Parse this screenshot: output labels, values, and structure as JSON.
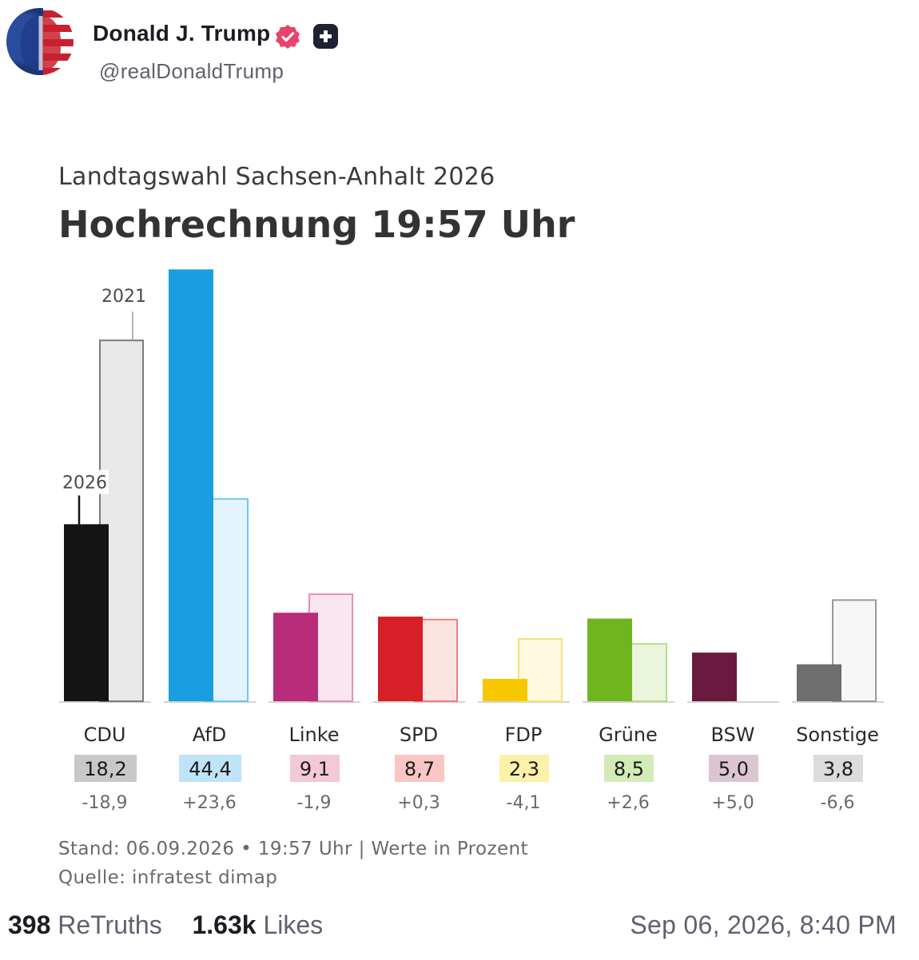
{
  "post": {
    "display_name": "Donald J. Trump",
    "handle": "@realDonaldTrump",
    "retruths_count": "398",
    "retruths_label": "ReTruths",
    "likes_count": "1.63k",
    "likes_label": "Likes",
    "timestamp": "Sep 06, 2026, 8:40 PM",
    "verified_icon": "verified-badge-icon",
    "plus_icon": "plus-badge-icon"
  },
  "chart_data": {
    "type": "bar",
    "subtitle": "Landtagswahl Sachsen-Anhalt 2026",
    "title": "Hochrechnung 19:57 Uhr",
    "categories": [
      "CDU",
      "AfD",
      "Linke",
      "SPD",
      "FDP",
      "Grüne",
      "BSW",
      "Sonstige"
    ],
    "series": [
      {
        "name": "2026",
        "values": [
          18.2,
          44.4,
          9.1,
          8.7,
          2.3,
          8.5,
          5.0,
          3.8
        ],
        "labels": [
          "18,2",
          "44,4",
          "9,1",
          "8,7",
          "2,3",
          "8,5",
          "5,0",
          "3,8"
        ]
      },
      {
        "name": "2021",
        "values": [
          37.1,
          20.8,
          11.0,
          8.4,
          6.4,
          5.9,
          0.0,
          10.4
        ]
      }
    ],
    "changes": [
      "-18,9",
      "+23,6",
      "-1,9",
      "+0,3",
      "-4,1",
      "+2,6",
      "+5,0",
      "-6,6"
    ],
    "colors": [
      "#141414",
      "#1a9ee2",
      "#b72d79",
      "#d61f26",
      "#f7c800",
      "#6fb520",
      "#6b1a3f",
      "#6e6e6e"
    ],
    "faded_colors": [
      "#e9e9e9",
      "#e3f4fc",
      "#f9e6ee",
      "#fbe3e2",
      "#fff9e0",
      "#eaf5dc",
      "#f1e3e8",
      "#f7f7f7"
    ],
    "outline_colors": [
      "#7a7a7a",
      "#6fc6ee",
      "#e68db5",
      "#ec7f7f",
      "#f5e07c",
      "#b6dc88",
      "#b48ca0",
      "#9a9a9a"
    ],
    "label_bg_colors": [
      "#c8c8c8",
      "#bfe3f7",
      "#f3c8d9",
      "#f9c6c3",
      "#fdf0a8",
      "#d3ebb7",
      "#dcc5d0",
      "#dcdcdc"
    ],
    "annotations": {
      "current_year": "2026",
      "previous_year": "2021"
    },
    "ylim": [
      0,
      45
    ],
    "xlabel": "",
    "ylabel": "",
    "footer_line1": "Stand: 06.09.2026 • 19:57 Uhr | Werte in Prozent",
    "footer_line2": "Quelle: infratest dimap",
    "grid": false,
    "legend": "none"
  }
}
